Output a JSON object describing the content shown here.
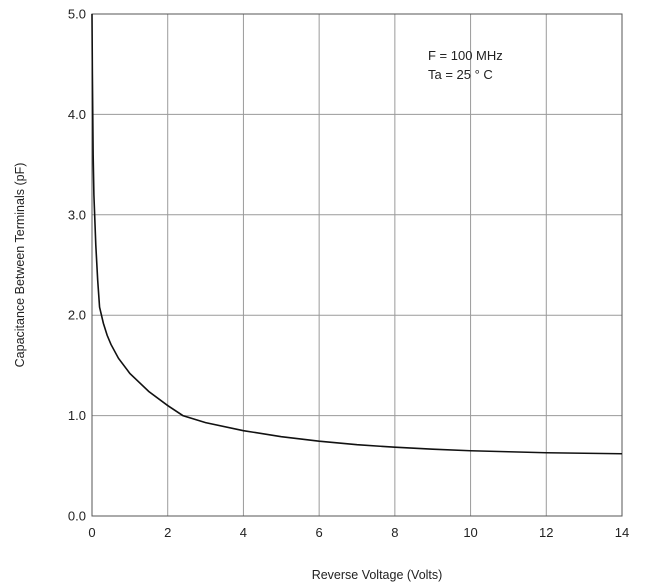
{
  "chart_data": {
    "type": "line",
    "title": "",
    "xlabel": "Reverse Voltage (Volts)",
    "ylabel": "Capacitance Between Terminals (pF)",
    "xlim": [
      0,
      14
    ],
    "ylim": [
      0,
      5
    ],
    "x_ticks": [
      0,
      2,
      4,
      6,
      8,
      10,
      12,
      14
    ],
    "y_ticks": [
      0,
      1,
      2,
      3,
      4,
      5
    ],
    "x_tick_labels": [
      "0",
      "2",
      "4",
      "6",
      "8",
      "10",
      "12",
      "14"
    ],
    "y_tick_labels": [
      "0.0",
      "1.0",
      "2.0",
      "3.0",
      "4.0",
      "5.0"
    ],
    "grid": true,
    "annotations": [
      "F = 100 MHz",
      "Ta = 25 ° C"
    ],
    "series": [
      {
        "x": [
          0,
          0.01,
          0.03,
          0.05,
          0.1,
          0.15,
          0.2,
          0.3,
          0.4,
          0.5,
          0.7,
          1.0,
          1.5,
          2.0,
          2.4,
          3.0,
          4.0,
          5.0,
          6.0,
          7.0,
          8.0,
          9.0,
          10.0,
          11.0,
          12.0,
          13.0,
          14.0
        ],
        "y": [
          5.0,
          4.4,
          3.6,
          3.2,
          2.7,
          2.35,
          2.08,
          1.92,
          1.8,
          1.71,
          1.57,
          1.42,
          1.24,
          1.1,
          1.0,
          0.93,
          0.85,
          0.79,
          0.745,
          0.71,
          0.685,
          0.665,
          0.65,
          0.64,
          0.63,
          0.625,
          0.62
        ]
      }
    ]
  }
}
